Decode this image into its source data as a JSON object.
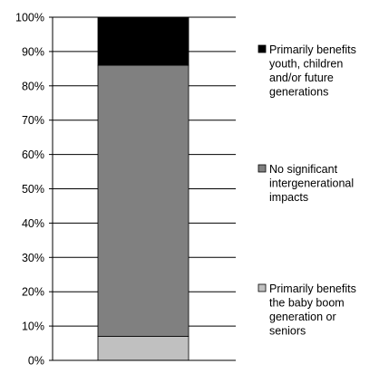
{
  "chart_data": {
    "type": "bar",
    "stacked": true,
    "categories": [
      ""
    ],
    "series": [
      {
        "name": "Primarily benefits the baby boom generation or seniors",
        "values": [
          7
        ],
        "color": "#c0c0c0"
      },
      {
        "name": "No significant intergenerational impacts",
        "values": [
          79
        ],
        "color": "#808080"
      },
      {
        "name": "Primarily benefits youth, children and/or future generations",
        "values": [
          14
        ],
        "color": "#000000"
      }
    ],
    "ylim": [
      0,
      100
    ],
    "yticks": [
      "0%",
      "10%",
      "20%",
      "30%",
      "40%",
      "50%",
      "60%",
      "70%",
      "80%",
      "90%",
      "100%"
    ],
    "grid": true,
    "legend_position": "right",
    "legend": [
      {
        "lines": [
          "Primarily benefits",
          "youth, children",
          "and/or future",
          "generations"
        ],
        "color": "#000000"
      },
      {
        "lines": [
          "No significant",
          "intergenerational",
          "impacts"
        ],
        "color": "#808080"
      },
      {
        "lines": [
          "Primarily benefits",
          "the baby boom",
          "generation or",
          "seniors"
        ],
        "color": "#c0c0c0"
      }
    ]
  }
}
